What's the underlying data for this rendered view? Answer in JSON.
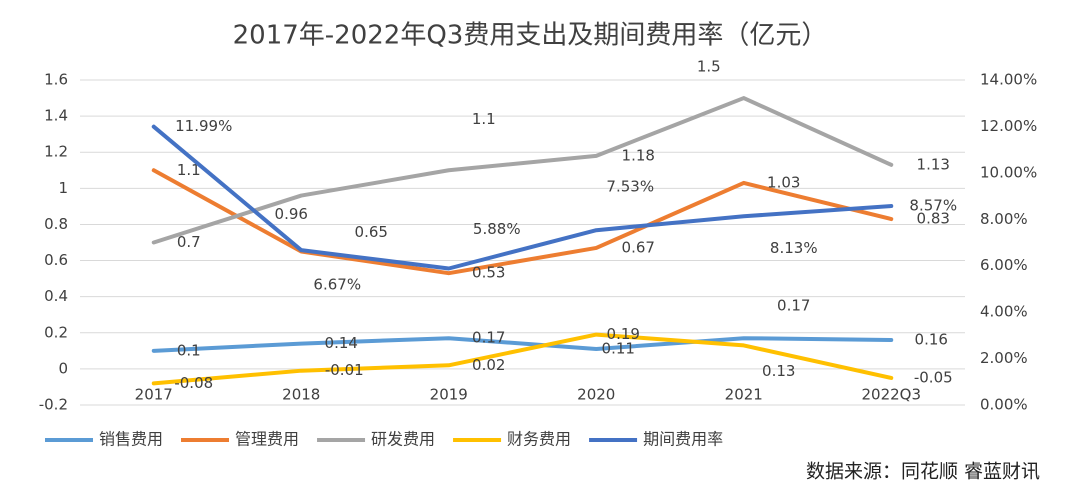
{
  "chart_data": {
    "type": "line",
    "title": "2017年-2022年Q3费用支出及期间费用率（亿元）",
    "categories": [
      "2017",
      "2018",
      "2019",
      "2020",
      "2021",
      "2022Q3"
    ],
    "series": [
      {
        "name": "销售费用",
        "color": "#5b9bd5",
        "values": [
          0.1,
          0.14,
          0.17,
          0.11,
          0.17,
          0.16
        ]
      },
      {
        "name": "管理费用",
        "color": "#ed7d31",
        "values": [
          1.1,
          0.65,
          0.53,
          0.67,
          1.03,
          0.83
        ]
      },
      {
        "name": "研发费用",
        "color": "#a5a5a5",
        "values": [
          0.7,
          0.96,
          1.1,
          1.18,
          1.5,
          1.13
        ]
      },
      {
        "name": "财务费用",
        "color": "#ffc000",
        "values": [
          -0.08,
          -0.01,
          0.02,
          0.19,
          0.13,
          -0.05
        ]
      },
      {
        "name": "期间费用率",
        "color": "#4472c4",
        "axis": "y2",
        "values": [
          11.99,
          6.67,
          5.88,
          7.53,
          8.13,
          8.57
        ],
        "value_labels": [
          "11.99%",
          "6.67%",
          "5.88%",
          "7.53%",
          "8.13%",
          "8.57%"
        ]
      }
    ],
    "ylim": [
      -0.2,
      1.6
    ],
    "yticks": [
      -0.2,
      0,
      0.2,
      0.4,
      0.6,
      0.8,
      1,
      1.2,
      1.4,
      1.6
    ],
    "y2lim": [
      0,
      14
    ],
    "y2ticks": [
      {
        "value": 0,
        "label": "0.00%"
      },
      {
        "value": 2,
        "label": "2.00%"
      },
      {
        "value": 4,
        "label": "4.00%"
      },
      {
        "value": 6,
        "label": "6.00%"
      },
      {
        "value": 8,
        "label": "8.00%"
      },
      {
        "value": 10,
        "label": "10.00%"
      },
      {
        "value": 12,
        "label": "12.00%"
      },
      {
        "value": 14,
        "label": "14.00%"
      }
    ],
    "grid": true,
    "legend": "bottom",
    "source": "数据来源：同花顺 睿蓝财讯"
  }
}
